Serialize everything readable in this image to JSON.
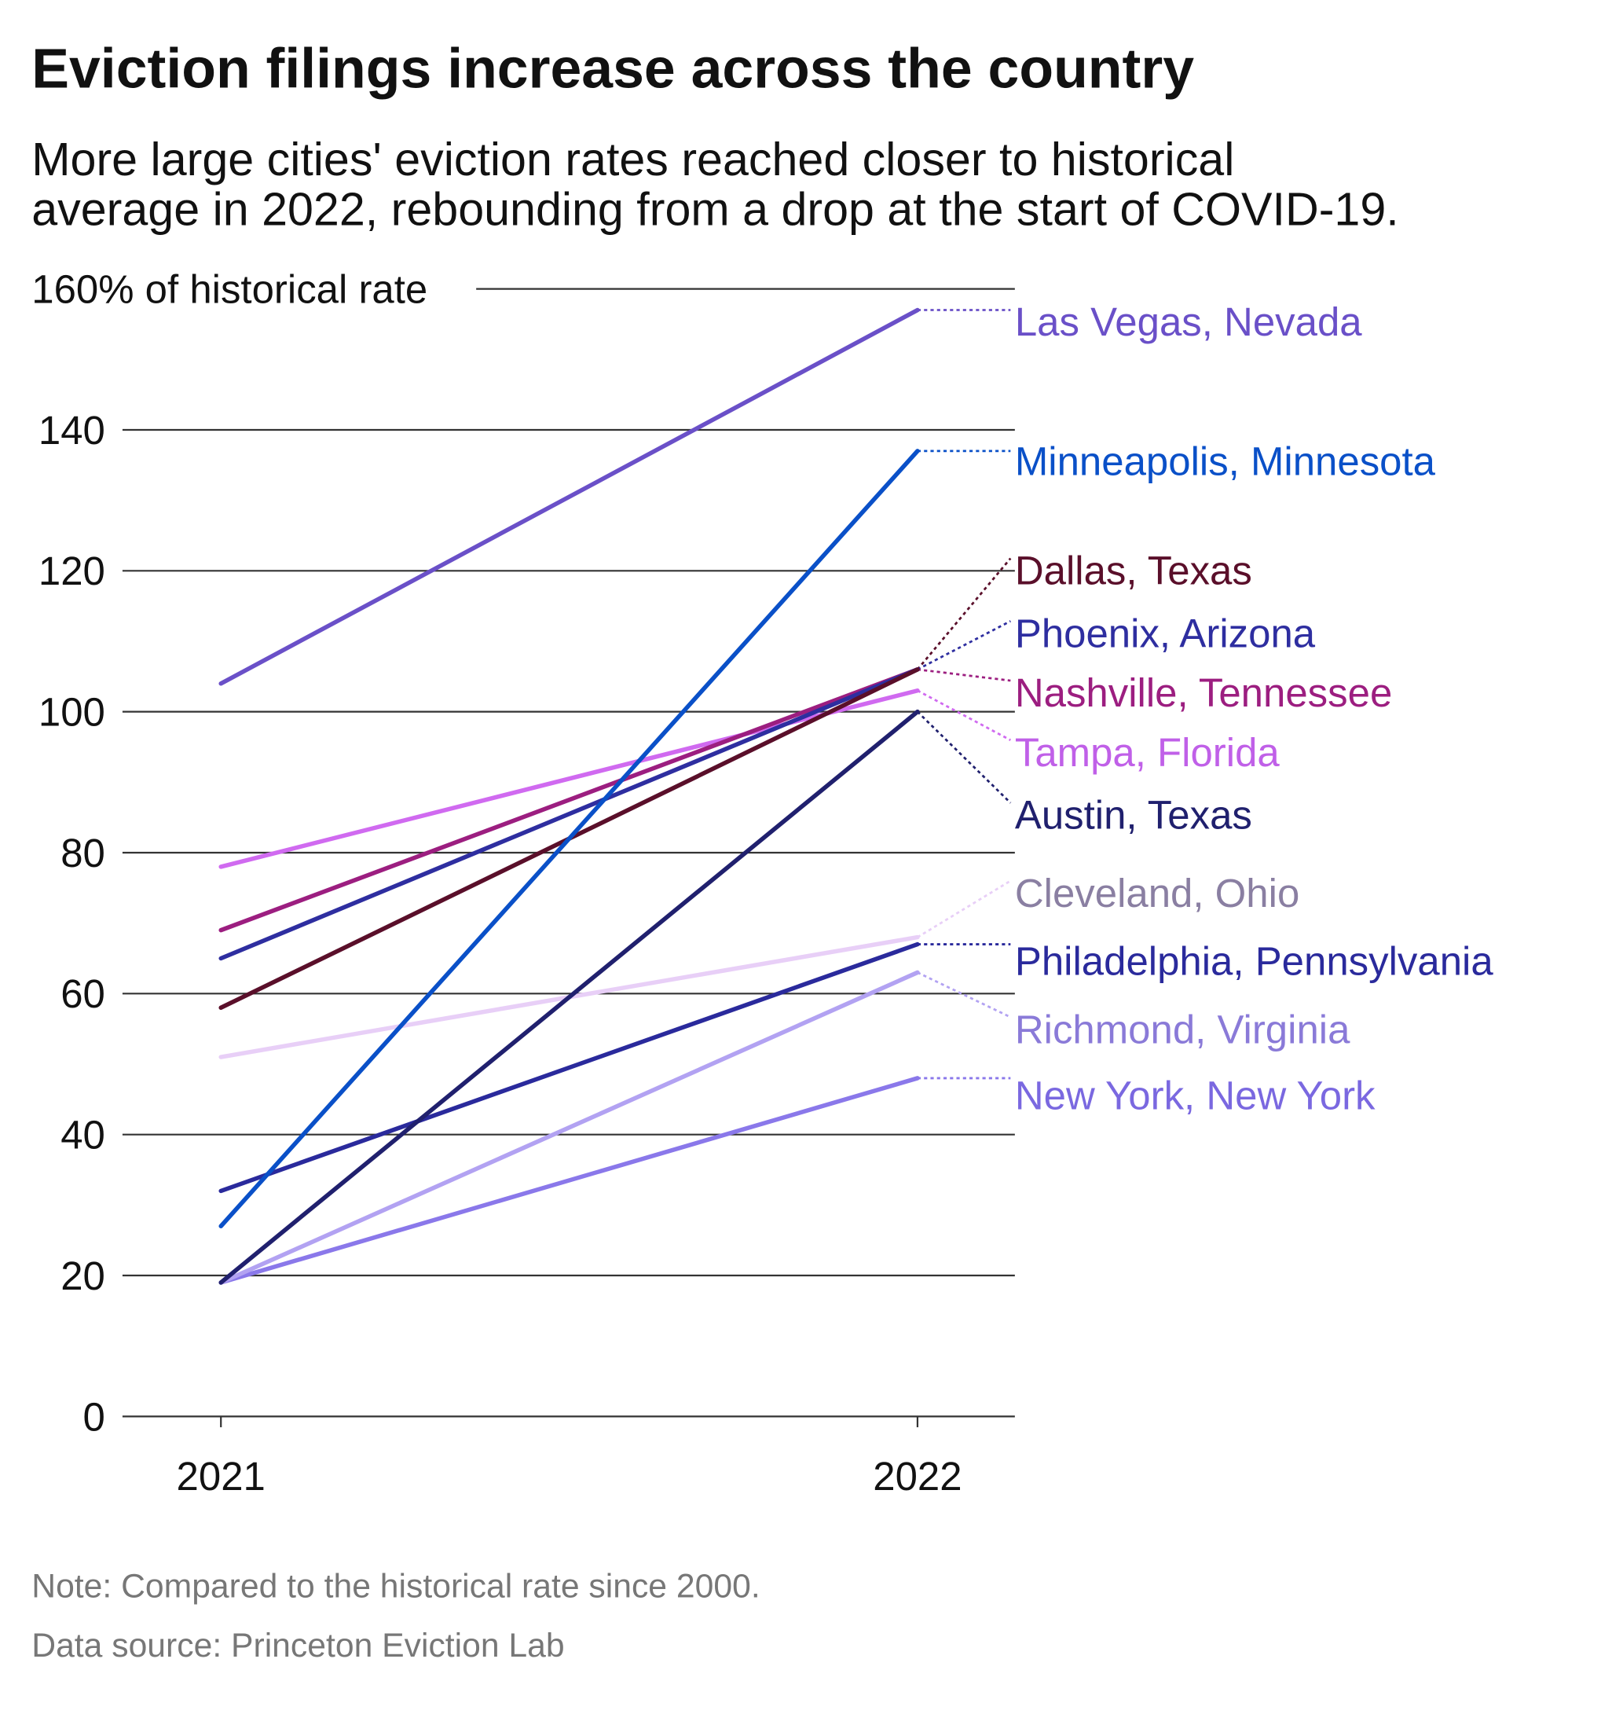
{
  "title": "Eviction filings increase across the country",
  "subtitle": [
    "More large cities' eviction rates reached closer to historical",
    "average in 2022, rebounding from a drop at the start of COVID-19."
  ],
  "note": "Note: Compared to the historical rate since 2000.",
  "source": "Data source: Princeton Eviction Lab",
  "chart_data": {
    "type": "line",
    "title": "Eviction filings increase across the country",
    "x": [
      "2021",
      "2022"
    ],
    "ylabel": "% of historical rate",
    "ylim": [
      0,
      160
    ],
    "yticks": [
      0,
      20,
      40,
      60,
      80,
      100,
      120,
      140,
      160
    ],
    "ytick_labels": [
      "0",
      "20",
      "40",
      "60",
      "80",
      "100",
      "120",
      "140",
      "160% of historical rate"
    ],
    "grid": true,
    "legend": "direct labels at right",
    "series": [
      {
        "name": "Las Vegas, Nevada",
        "values": [
          104,
          157
        ],
        "color": "#6a50c8",
        "label_color": "#6a50c8"
      },
      {
        "name": "Minneapolis, Minnesota",
        "values": [
          27,
          137
        ],
        "color": "#0a50c8",
        "label_color": "#0a50c8"
      },
      {
        "name": "Dallas, Texas",
        "values": [
          58,
          106
        ],
        "color": "#5a0f2a",
        "label_color": "#5a0f2a"
      },
      {
        "name": "Phoenix, Arizona",
        "values": [
          65,
          106
        ],
        "color": "#2e2ea0",
        "label_color": "#2e2ea0"
      },
      {
        "name": "Nashville, Tennessee",
        "values": [
          69,
          106
        ],
        "color": "#9c1e80",
        "label_color": "#9c1e80"
      },
      {
        "name": "Tampa, Florida",
        "values": [
          78,
          103
        ],
        "color": "#d06af0",
        "label_color": "#c060e8"
      },
      {
        "name": "Austin, Texas",
        "values": [
          19,
          100
        ],
        "color": "#20206e",
        "label_color": "#20206e"
      },
      {
        "name": "Cleveland, Ohio",
        "values": [
          51,
          68
        ],
        "color": "#e8cff7",
        "label_color": "#8a7fa2"
      },
      {
        "name": "Philadelphia, Pennsylvania",
        "values": [
          32,
          67
        ],
        "color": "#2a2a9c",
        "label_color": "#2a2a9c"
      },
      {
        "name": "Richmond, Virginia",
        "values": [
          19,
          63
        ],
        "color": "#b2a2f2",
        "label_color": "#8a7ad8"
      },
      {
        "name": "New York, New York",
        "values": [
          19,
          48
        ],
        "color": "#8a78ea",
        "label_color": "#7a68e0"
      }
    ]
  }
}
